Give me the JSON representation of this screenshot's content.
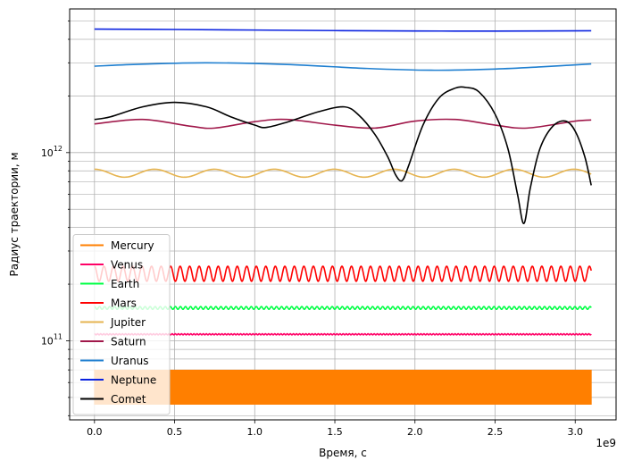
{
  "chart_data": {
    "type": "line",
    "title": "",
    "xlabel": "Время, с",
    "ylabel": "Радиус траектории, м",
    "x_offset_label": "1e9",
    "yscale": "log",
    "xlim": [
      -155000000.0,
      3255000000.0
    ],
    "ylim": [
      38000000000.0,
      5800000000000.0
    ],
    "x_ticks": [
      0,
      500000000.0,
      1000000000.0,
      1500000000.0,
      2000000000.0,
      2500000000.0,
      3000000000.0
    ],
    "x_tick_labels": [
      "0.0",
      "0.5",
      "1.0",
      "1.5",
      "2.0",
      "2.5",
      "3.0"
    ],
    "y_major_ticks": [
      100000000000.0,
      1000000000000.0
    ],
    "y_major_labels": [
      "10",
      "10"
    ],
    "y_major_exponents": [
      "11",
      "12"
    ],
    "grid": "major and minor",
    "legend_position": "lower-left",
    "series": [
      {
        "name": "Mercury",
        "color": "#ff7f00",
        "kind": "oscillating",
        "min": 46000000000.0,
        "max": 69800000000.0,
        "period": 7600000.0,
        "x_end": 3100000000.0
      },
      {
        "name": "Venus",
        "color": "#ff0066",
        "kind": "oscillating",
        "min": 107500000000.0,
        "max": 109000000000.0,
        "period": 19400000.0,
        "x_end": 3100000000.0
      },
      {
        "name": "Earth",
        "color": "#00ff44",
        "kind": "oscillating",
        "min": 147000000000.0,
        "max": 152000000000.0,
        "period": 31560000.0,
        "x_end": 3100000000.0
      },
      {
        "name": "Mars",
        "color": "#ff0000",
        "kind": "oscillating",
        "min": 207000000000.0,
        "max": 249000000000.0,
        "period": 59400000.0,
        "x_end": 3100000000.0
      },
      {
        "name": "Jupiter",
        "color": "#e6b450",
        "kind": "oscillating",
        "min": 740000000000.0,
        "max": 816000000000.0,
        "period": 374000000.0,
        "x_end": 3100000000.0
      },
      {
        "name": "Saturn",
        "color": "#a0184a",
        "kind": "points",
        "x": [
          0,
          300000000.0,
          600000000.0,
          750000000.0,
          1000000000.0,
          1200000000.0,
          1500000000.0,
          1750000000.0,
          2000000000.0,
          2250000000.0,
          2500000000.0,
          2700000000.0,
          3000000000.0,
          3100000000.0
        ],
        "y": [
          1420000000000.0,
          1500000000000.0,
          1380000000000.0,
          1350000000000.0,
          1460000000000.0,
          1500000000000.0,
          1400000000000.0,
          1350000000000.0,
          1470000000000.0,
          1500000000000.0,
          1400000000000.0,
          1350000000000.0,
          1470000000000.0,
          1490000000000.0
        ]
      },
      {
        "name": "Uranus",
        "color": "#1f7fd0",
        "kind": "points",
        "x": [
          0,
          300000000.0,
          700000000.0,
          1200000000.0,
          1700000000.0,
          2100000000.0,
          2500000000.0,
          2800000000.0,
          3100000000.0
        ],
        "y": [
          2880000000000.0,
          2950000000000.0,
          3000000000000.0,
          2940000000000.0,
          2800000000000.0,
          2740000000000.0,
          2780000000000.0,
          2860000000000.0,
          2960000000000.0
        ]
      },
      {
        "name": "Neptune",
        "color": "#0a22e0",
        "kind": "points",
        "x": [
          0,
          500000000.0,
          1000000000.0,
          1500000000.0,
          2000000000.0,
          2500000000.0,
          3100000000.0
        ],
        "y": [
          4530000000000.0,
          4510000000000.0,
          4480000000000.0,
          4450000000000.0,
          4430000000000.0,
          4420000000000.0,
          4440000000000.0
        ]
      },
      {
        "name": "Comet",
        "color": "#000000",
        "kind": "points",
        "x": [
          0,
          100000000.0,
          300000000.0,
          500000000.0,
          700000000.0,
          850000000.0,
          1000000000.0,
          1070000000.0,
          1200000000.0,
          1400000000.0,
          1560000000.0,
          1650000000.0,
          1750000000.0,
          1830000000.0,
          1880000000.0,
          1920000000.0,
          1960000000.0,
          2050000000.0,
          2150000000.0,
          2250000000.0,
          2320000000.0,
          2400000000.0,
          2500000000.0,
          2580000000.0,
          2640000000.0,
          2680000000.0,
          2720000000.0,
          2780000000.0,
          2860000000.0,
          2940000000.0,
          3000000000.0,
          3060000000.0,
          3100000000.0
        ],
        "y": [
          1500000000000.0,
          1550000000000.0,
          1750000000000.0,
          1850000000000.0,
          1750000000000.0,
          1550000000000.0,
          1400000000000.0,
          1360000000000.0,
          1450000000000.0,
          1650000000000.0,
          1750000000000.0,
          1580000000000.0,
          1250000000000.0,
          950000000000.0,
          760000000000.0,
          710000000000.0,
          850000000000.0,
          1400000000000.0,
          1950000000000.0,
          2200000000000.0,
          2220000000000.0,
          2100000000000.0,
          1600000000000.0,
          1050000000000.0,
          600000000000.0,
          420000000000.0,
          650000000000.0,
          1050000000000.0,
          1380000000000.0,
          1470000000000.0,
          1300000000000.0,
          950000000000.0,
          670000000000.0
        ]
      }
    ]
  }
}
